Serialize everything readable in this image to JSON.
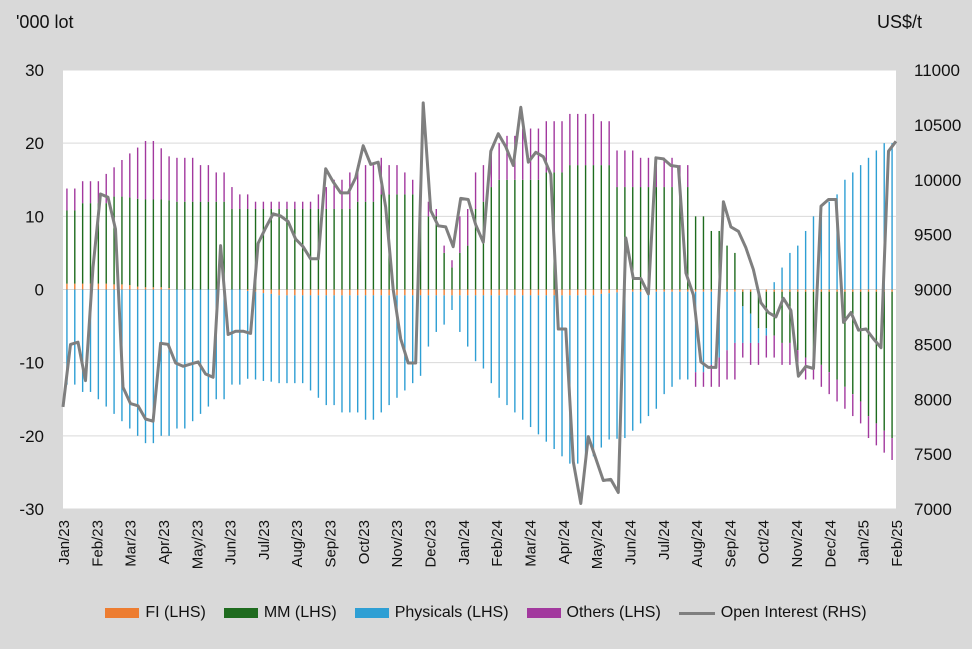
{
  "chart_data": {
    "type": "bar",
    "subtype": "stacked-bar-with-line",
    "left_axis_unit": "'000 lot",
    "right_axis_unit": "US$/t",
    "ylim_left": [
      -30,
      30
    ],
    "yticks_left": [
      -30,
      -20,
      -10,
      0,
      10,
      20,
      30
    ],
    "ylim_right": [
      7000,
      11000
    ],
    "yticks_right": [
      7000,
      7500,
      8000,
      8500,
      9000,
      9500,
      10000,
      10500,
      11000
    ],
    "grid": true,
    "legend_position": "bottom",
    "x_tick_labels": [
      "Jan/23",
      "Feb/23",
      "Mar/23",
      "Apr/23",
      "May/23",
      "Jun/23",
      "Jul/23",
      "Aug/23",
      "Sep/23",
      "Oct/23",
      "Nov/23",
      "Dec/23",
      "Jan/24",
      "Feb/24",
      "Mar/24",
      "Apr/24",
      "May/24",
      "Jun/24",
      "Jul/24",
      "Aug/24",
      "Sep/24",
      "Oct/24",
      "Nov/24",
      "Dec/24",
      "Jan/25",
      "Feb/25"
    ],
    "series": [
      {
        "name": "FI (LHS)",
        "axis": "left",
        "kind": "bar",
        "color": "#ed7d31",
        "values": [
          0.8,
          0.8,
          0.8,
          0.8,
          0.8,
          0.8,
          0.7,
          0.7,
          0.6,
          0.4,
          0.3,
          0.3,
          0.3,
          0.2,
          0,
          0,
          0,
          0,
          0,
          0,
          0,
          0,
          0,
          -0.2,
          -0.3,
          -0.5,
          -0.6,
          -0.8,
          -0.8,
          -0.8,
          -0.8,
          -0.8,
          -0.8,
          -0.8,
          -0.8,
          -0.8,
          -0.8,
          -0.8,
          -0.8,
          -0.8,
          -0.8,
          -0.8,
          -0.8,
          -0.8,
          -0.8,
          -0.8,
          -0.8,
          -0.8,
          -0.8,
          -0.8,
          -0.8,
          -0.8,
          -0.8,
          -0.8,
          -0.8,
          -0.8,
          -0.8,
          -0.8,
          -0.8,
          -0.8,
          -0.8,
          -0.8,
          -0.8,
          -0.8,
          -0.8,
          -0.8,
          -0.8,
          -0.8,
          -0.6,
          -0.5,
          -0.4,
          -0.3,
          -0.3,
          -0.3,
          -0.3,
          -0.3,
          -0.3,
          -0.3,
          -0.3,
          -0.3,
          -0.3,
          -0.3,
          -0.3,
          -0.3,
          -0.3,
          -0.3,
          -0.3,
          -0.3,
          -0.3,
          -0.3,
          -0.3,
          -0.3,
          -0.3,
          -0.3,
          -0.3,
          -0.3,
          -0.3,
          -0.3,
          -0.3,
          -0.3,
          -0.3,
          -0.3,
          -0.3,
          -0.3,
          -0.3,
          -0.3
        ]
      },
      {
        "name": "MM (LHS)",
        "axis": "left",
        "kind": "bar",
        "color": "#1e6b1e",
        "values": [
          10,
          10,
          11,
          11,
          11,
          11,
          12,
          12,
          12,
          12,
          12,
          12,
          12,
          12,
          12,
          12,
          12,
          12,
          12,
          12,
          12,
          11,
          11,
          11,
          11,
          11,
          11,
          11,
          11,
          11,
          11,
          11,
          11,
          11,
          11,
          11,
          11,
          12,
          12,
          12,
          13,
          13,
          13,
          13,
          13,
          12,
          10,
          10,
          5,
          3,
          5,
          6,
          11,
          12,
          14,
          15,
          15,
          15,
          15,
          15,
          15,
          16,
          16,
          16,
          17,
          17,
          17,
          17,
          17,
          17,
          14,
          14,
          14,
          14,
          14,
          14,
          14,
          14,
          14,
          14,
          10,
          10,
          8,
          8,
          6,
          5,
          -2,
          -3,
          -5,
          -5,
          -6,
          -7,
          -7,
          -8,
          -9,
          -9,
          -10,
          -11,
          -12,
          -13,
          -14,
          -15,
          -17,
          -18,
          -19,
          -20
        ]
      },
      {
        "name": "Physicals (LHS)",
        "axis": "left",
        "kind": "bar",
        "color": "#2e9fd4",
        "values": [
          -13,
          -13,
          -14,
          -14,
          -15,
          -16,
          -17,
          -18,
          -19,
          -20,
          -21,
          -21,
          -20,
          -20,
          -19,
          -19,
          -18,
          -17,
          -16,
          -15,
          -15,
          -13,
          -13,
          -12,
          -12,
          -12,
          -12,
          -12,
          -12,
          -12,
          -12,
          -13,
          -14,
          -15,
          -15,
          -16,
          -16,
          -16,
          -17,
          -17,
          -16,
          -15,
          -14,
          -13,
          -12,
          -11,
          -7,
          -5,
          -4,
          -2,
          -5,
          -7,
          -9,
          -10,
          -12,
          -14,
          -15,
          -16,
          -17,
          -18,
          -19,
          -20,
          -21,
          -22,
          -23,
          -23,
          -23,
          -22,
          -21,
          -20,
          -20,
          -20,
          -19,
          -18,
          -17,
          -16,
          -14,
          -13,
          -12,
          -12,
          -11,
          -11,
          -10,
          -9,
          -8,
          -7,
          -5,
          -4,
          -2,
          -1,
          1,
          3,
          5,
          6,
          8,
          10,
          11,
          12,
          13,
          15,
          16,
          17,
          18,
          19,
          20,
          20
        ]
      },
      {
        "name": "Others (LHS)",
        "axis": "left",
        "kind": "bar",
        "color": "#a2399e",
        "values": [
          3,
          3,
          3,
          3,
          3,
          4,
          4,
          5,
          6,
          7,
          8,
          8,
          7,
          6,
          6,
          6,
          6,
          5,
          5,
          4,
          4,
          3,
          2,
          2,
          1,
          1,
          1,
          1,
          1,
          1,
          1,
          1,
          2,
          3,
          4,
          4,
          5,
          5,
          5,
          5,
          5,
          4,
          4,
          3,
          2,
          2,
          2,
          1,
          1,
          1,
          5,
          5,
          5,
          5,
          5,
          5,
          6,
          6,
          7,
          7,
          7,
          7,
          7,
          7,
          7,
          7,
          7,
          7,
          6,
          6,
          5,
          5,
          5,
          4,
          4,
          4,
          4,
          4,
          3,
          3,
          -2,
          -2,
          -3,
          -4,
          -4,
          -5,
          -2,
          -3,
          -3,
          -3,
          -3,
          -3,
          -3,
          -3,
          -3,
          -3,
          -3,
          -3,
          -3,
          -3,
          -3,
          -3,
          -3,
          -3,
          -3,
          -3
        ]
      },
      {
        "name": "Open Interest (RHS)",
        "axis": "right",
        "kind": "line",
        "color": "#7f7f7f",
        "values": [
          7930,
          8500,
          8520,
          8170,
          9200,
          9870,
          9840,
          9550,
          8110,
          7960,
          7940,
          7820,
          7800,
          8510,
          8500,
          8330,
          8300,
          8320,
          8340,
          8230,
          8200,
          9400,
          8590,
          8620,
          8620,
          8600,
          9420,
          9560,
          9690,
          9670,
          9620,
          9460,
          9390,
          9280,
          9280,
          10100,
          9980,
          9880,
          9880,
          10020,
          10310,
          10140,
          10160,
          9750,
          9000,
          8550,
          8330,
          8330,
          10700,
          9720,
          9580,
          9570,
          9390,
          9830,
          9820,
          9590,
          9430,
          10260,
          10420,
          10300,
          10130,
          10660,
          10160,
          10250,
          10210,
          10050,
          8640,
          8640,
          7430,
          7050,
          7660,
          7460,
          7260,
          7270,
          7150,
          9470,
          9100,
          9100,
          8960,
          10200,
          10190,
          10130,
          10120,
          9150,
          8950,
          8340,
          8290,
          8290,
          9800,
          9570,
          9530,
          9380,
          9180,
          8880,
          8790,
          8750,
          8920,
          8810,
          8210,
          8300,
          8280,
          9760,
          9820,
          9820,
          8700,
          8790,
          8630,
          8640,
          8550,
          8470,
          10260,
          10350
        ]
      }
    ]
  }
}
